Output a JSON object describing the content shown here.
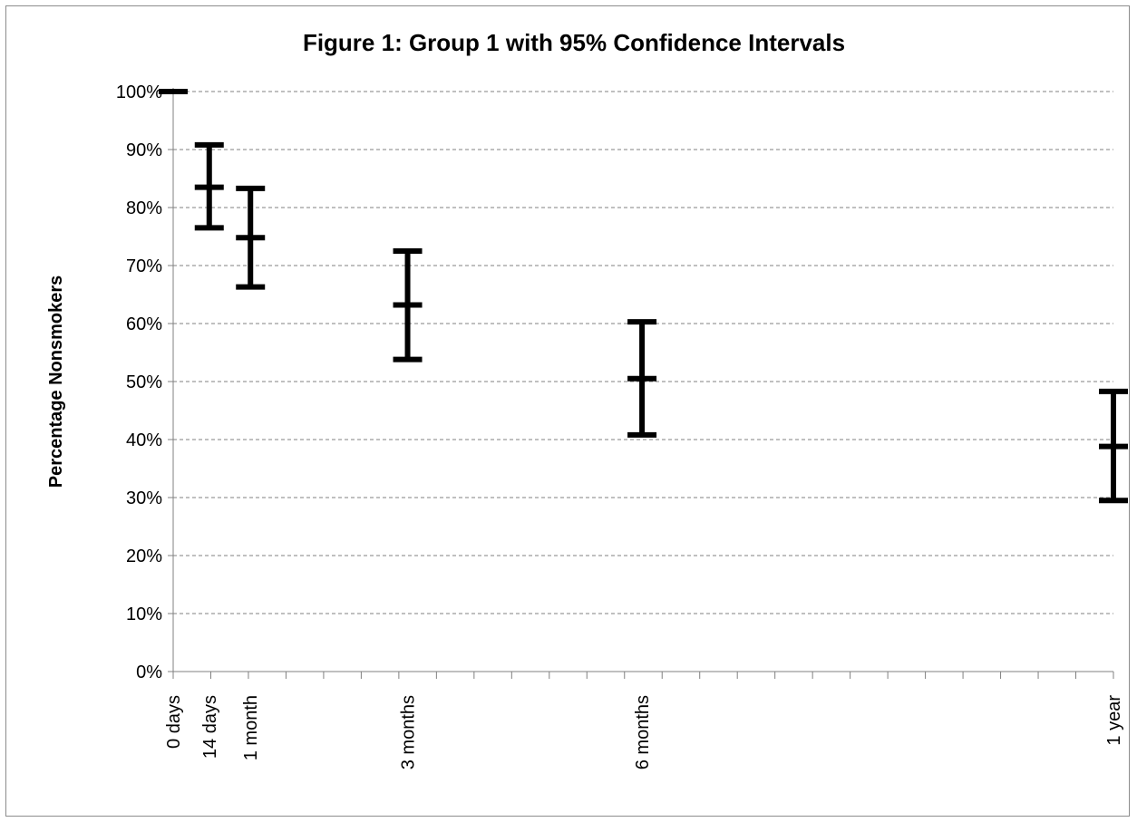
{
  "chart_data": {
    "type": "errorbar",
    "title": "Figure 1: Group 1 with 95% Confidence Intervals",
    "xlabel": "",
    "ylabel": "Percentage Nonsmokers",
    "ylim": [
      0,
      100
    ],
    "y_ticks": [
      "0%",
      "10%",
      "20%",
      "30%",
      "40%",
      "50%",
      "60%",
      "70%",
      "80%",
      "90%",
      "100%"
    ],
    "x_unit": "days",
    "xlim": [
      0,
      365
    ],
    "grid": "horizontal dashed",
    "legend": "none",
    "mark_color": "#000000",
    "points": [
      {
        "label": "0 days",
        "x": 0,
        "mean": 100,
        "lower": 100,
        "upper": 100
      },
      {
        "label": "14 days",
        "x": 14,
        "mean": 83.5,
        "lower": 76.5,
        "upper": 90.8
      },
      {
        "label": "1 month",
        "x": 30,
        "mean": 74.8,
        "lower": 66.3,
        "upper": 83.3
      },
      {
        "label": "3 months",
        "x": 91,
        "mean": 63.2,
        "lower": 53.8,
        "upper": 72.5
      },
      {
        "label": "6 months",
        "x": 182,
        "mean": 50.5,
        "lower": 40.8,
        "upper": 60.3
      },
      {
        "label": "1 year",
        "x": 365,
        "mean": 38.8,
        "lower": 29.5,
        "upper": 48.3
      }
    ]
  }
}
